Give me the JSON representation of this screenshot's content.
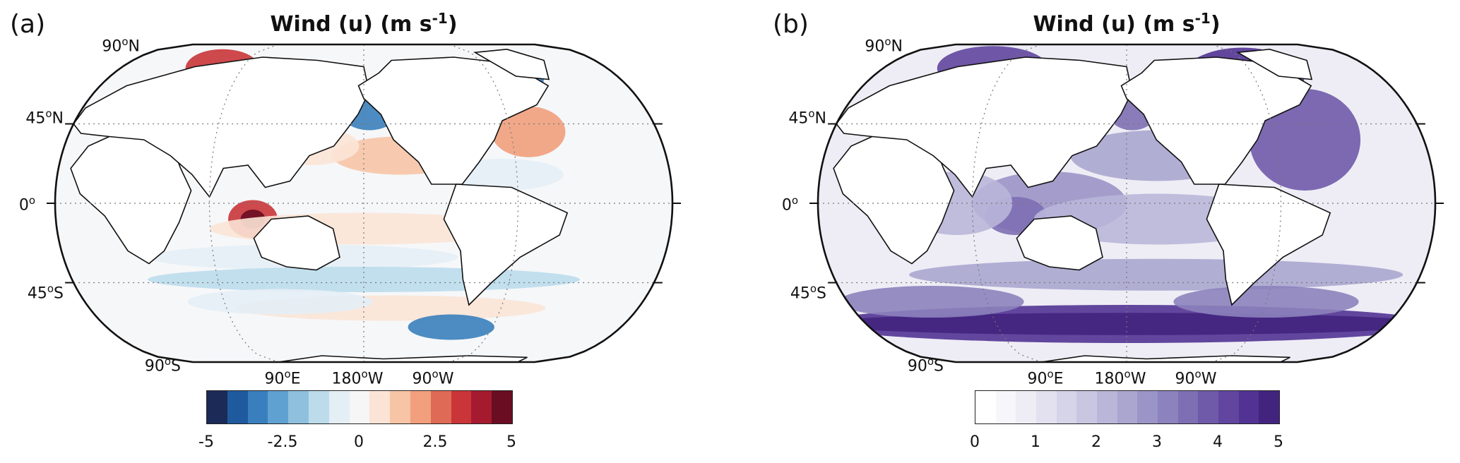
{
  "panels": [
    {
      "letter": "(a)",
      "title_main": "Wind (u) (m s",
      "title_sup": "-1",
      "title_end": ")",
      "lat_labels": [
        {
          "deg": "90",
          "hemi": "N"
        },
        {
          "deg": "45",
          "hemi": "N"
        },
        {
          "deg": "0",
          "hemi": ""
        },
        {
          "deg": "45",
          "hemi": "S"
        },
        {
          "deg": "90",
          "hemi": "S"
        }
      ],
      "lon_labels": [
        {
          "deg": "90",
          "hemi": "E"
        },
        {
          "deg": "180",
          "hemi": "W"
        },
        {
          "deg": "90",
          "hemi": "W"
        }
      ],
      "colorbar": {
        "colormap": "diverging red-blue",
        "colors": [
          "#1b2a57",
          "#1f5a9e",
          "#3a7fbd",
          "#5fa1d1",
          "#8fc1df",
          "#bcdcec",
          "#e4eef5",
          "#f6f6f6",
          "#fbe4d6",
          "#f7c4a6",
          "#f19f7c",
          "#df6a55",
          "#c93538",
          "#a51a2e",
          "#6a0c22"
        ],
        "ticks": [
          "-5",
          "-2.5",
          "0",
          "2.5",
          "5"
        ],
        "range": [
          -5,
          5
        ]
      }
    },
    {
      "letter": "(b)",
      "title_main": "Wind (u) (m s",
      "title_sup": "-1",
      "title_end": ")",
      "lat_labels": [
        {
          "deg": "90",
          "hemi": "N"
        },
        {
          "deg": "45",
          "hemi": "N"
        },
        {
          "deg": "0",
          "hemi": ""
        },
        {
          "deg": "45",
          "hemi": "S"
        },
        {
          "deg": "90",
          "hemi": "S"
        }
      ],
      "lon_labels": [
        {
          "deg": "90",
          "hemi": "E"
        },
        {
          "deg": "180",
          "hemi": "W"
        },
        {
          "deg": "90",
          "hemi": "W"
        }
      ],
      "colorbar": {
        "colormap": "sequential purple",
        "colors": [
          "#ffffff",
          "#f7f6fa",
          "#eeedf5",
          "#e3e1ef",
          "#d6d4e8",
          "#c8c6e1",
          "#b9b6d9",
          "#aaa6d0",
          "#9b94c7",
          "#8c82bd",
          "#7e6fb4",
          "#6f5aaa",
          "#61459f",
          "#523393",
          "#42247f"
        ],
        "ticks": [
          "0",
          "1",
          "2",
          "3",
          "4",
          "5"
        ],
        "range": [
          0,
          5
        ]
      }
    }
  ]
}
